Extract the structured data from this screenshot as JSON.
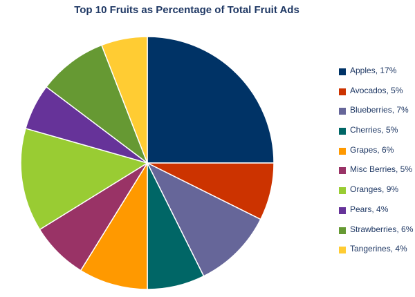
{
  "chart_data": {
    "type": "pie",
    "title": "Top 10 Fruits as Percentage of Total Fruit Ads",
    "slices": [
      {
        "label": "Apples, 17%",
        "value": 17,
        "color": "#003366"
      },
      {
        "label": "Avocados, 5%",
        "value": 5,
        "color": "#cc3300"
      },
      {
        "label": "Blueberries, 7%",
        "value": 7,
        "color": "#666699"
      },
      {
        "label": "Cherries, 5%",
        "value": 5,
        "color": "#006666"
      },
      {
        "label": "Grapes, 6%",
        "value": 6,
        "color": "#ff9900"
      },
      {
        "label": "Misc Berries, 5%",
        "value": 5,
        "color": "#993366"
      },
      {
        "label": "Oranges, 9%",
        "value": 9,
        "color": "#99cc33"
      },
      {
        "label": "Pears, 4%",
        "value": 4,
        "color": "#663399"
      },
      {
        "label": "Strawberries, 6%",
        "value": 6,
        "color": "#669933"
      },
      {
        "label": "Tangerines, 4%",
        "value": 4,
        "color": "#ffcc33"
      }
    ],
    "legend_position": "right",
    "start_angle": "12 o'clock",
    "direction": "clockwise"
  }
}
